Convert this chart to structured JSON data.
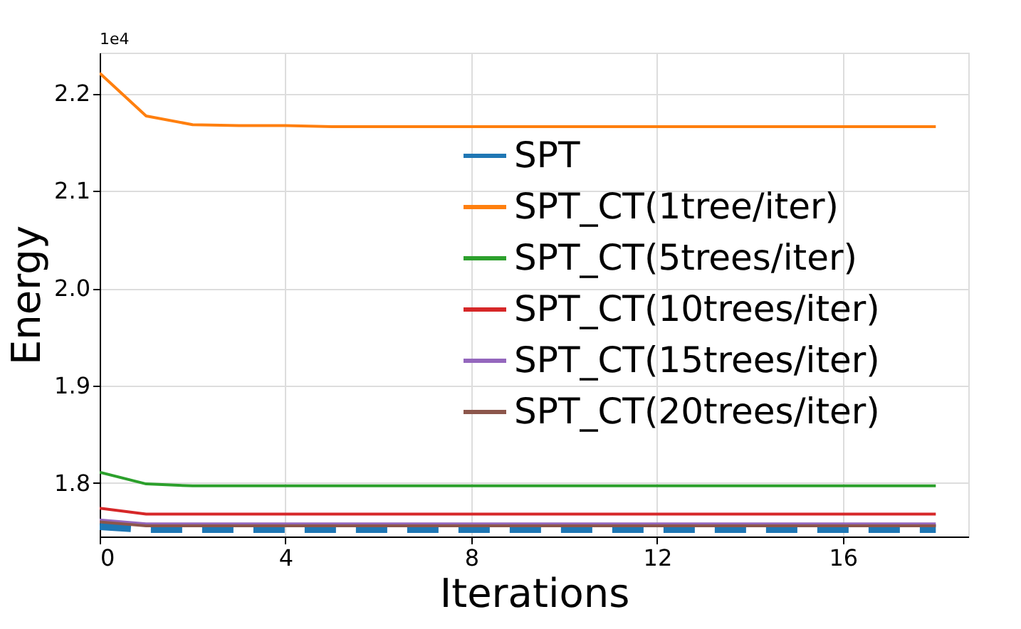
{
  "chart_data": {
    "type": "line",
    "xlabel": "Iterations",
    "ylabel": "Energy",
    "annotations": [
      "1e4"
    ],
    "x": [
      0,
      1,
      2,
      3,
      4,
      5,
      6,
      7,
      8,
      9,
      10,
      11,
      12,
      13,
      14,
      15,
      16,
      17,
      18
    ],
    "series": [
      {
        "name": "SPT",
        "color": "#1f77b4",
        "line_style": "dashed",
        "values": [
          1.756,
          1.753,
          1.753,
          1.753,
          1.753,
          1.753,
          1.753,
          1.753,
          1.753,
          1.753,
          1.753,
          1.753,
          1.753,
          1.753,
          1.753,
          1.753,
          1.753,
          1.753,
          1.753
        ]
      },
      {
        "name": "SPT_CT(1tree/iter)",
        "color": "#ff7f0e",
        "line_style": "solid",
        "values": [
          2.221,
          2.177,
          2.168,
          2.167,
          2.167,
          2.166,
          2.166,
          2.166,
          2.166,
          2.166,
          2.166,
          2.166,
          2.166,
          2.166,
          2.166,
          2.166,
          2.166,
          2.166,
          2.166
        ]
      },
      {
        "name": "SPT_CT(5trees/iter)",
        "color": "#2ca02c",
        "line_style": "solid",
        "values": [
          1.811,
          1.799,
          1.797,
          1.797,
          1.797,
          1.797,
          1.797,
          1.797,
          1.797,
          1.797,
          1.797,
          1.797,
          1.797,
          1.797,
          1.797,
          1.797,
          1.797,
          1.797,
          1.797
        ]
      },
      {
        "name": "SPT_CT(10trees/iter)",
        "color": "#d62728",
        "line_style": "solid",
        "values": [
          1.774,
          1.768,
          1.768,
          1.768,
          1.768,
          1.768,
          1.768,
          1.768,
          1.768,
          1.768,
          1.768,
          1.768,
          1.768,
          1.768,
          1.768,
          1.768,
          1.768,
          1.768,
          1.768
        ]
      },
      {
        "name": "SPT_CT(15trees/iter)",
        "color": "#9467bd",
        "line_style": "solid",
        "values": [
          1.762,
          1.758,
          1.758,
          1.758,
          1.758,
          1.758,
          1.758,
          1.758,
          1.758,
          1.758,
          1.758,
          1.758,
          1.758,
          1.758,
          1.758,
          1.758,
          1.758,
          1.758,
          1.758
        ]
      },
      {
        "name": "SPT_CT(20trees/iter)",
        "color": "#8c564b",
        "line_style": "solid",
        "values": [
          1.76,
          1.756,
          1.756,
          1.756,
          1.756,
          1.756,
          1.756,
          1.756,
          1.756,
          1.756,
          1.756,
          1.756,
          1.756,
          1.756,
          1.756,
          1.756,
          1.756,
          1.756,
          1.756
        ]
      }
    ],
    "xlim": [
      0,
      18.7
    ],
    "xticks": [
      0,
      4,
      8,
      12,
      16
    ],
    "ylim": [
      1.745,
      2.242
    ],
    "yticks": [
      1.8,
      1.9,
      {
        "value": 2.0,
        "label": "2.0"
      },
      2.1,
      2.2
    ],
    "grid": true,
    "legend": "right"
  }
}
